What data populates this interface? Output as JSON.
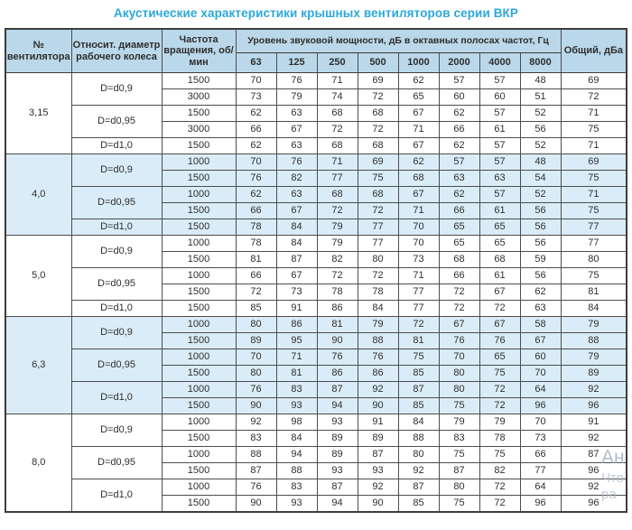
{
  "title": "Акустические характеристики крышных вентиляторов серии ВКР",
  "colors": {
    "accent": "#2AA8DC",
    "header_bg": "#BAD8EA",
    "stripe_bg": "#DAECF7",
    "border": "#3C3C3C",
    "text": "#2E2E2E",
    "watermark": "#A9BCCB"
  },
  "watermark": {
    "lines": [
      "Ан",
      "Что",
      "ра"
    ]
  },
  "table": {
    "headers": {
      "fan": "№ вентилятора",
      "diameter": "Относит. диаметр рабочего колеса",
      "rpm": "Частота вращения, об/мин",
      "spl": "Уровень звуковой мощности, дБ в октавных полосах частот, Гц",
      "total": "Общий, дБа"
    },
    "freq_labels": [
      "63",
      "125",
      "250",
      "500",
      "1000",
      "2000",
      "4000",
      "8000"
    ],
    "sections": [
      {
        "fan": "3,15",
        "striped": false,
        "groups": [
          {
            "diameter": "D=d0,9",
            "rows": [
              {
                "rpm": "1500",
                "values": [
                  70,
                  76,
                  71,
                  69,
                  62,
                  57,
                  57,
                  48
                ],
                "total": 69
              },
              {
                "rpm": "3000",
                "values": [
                  73,
                  79,
                  74,
                  72,
                  65,
                  60,
                  60,
                  51
                ],
                "total": 72
              }
            ]
          },
          {
            "diameter": "D=d0,95",
            "rows": [
              {
                "rpm": "1500",
                "values": [
                  62,
                  63,
                  68,
                  68,
                  67,
                  62,
                  57,
                  52
                ],
                "total": 71
              },
              {
                "rpm": "3000",
                "values": [
                  66,
                  67,
                  72,
                  72,
                  71,
                  66,
                  61,
                  56
                ],
                "total": 75
              }
            ]
          },
          {
            "diameter": "D=d1,0",
            "rows": [
              {
                "rpm": "1500",
                "values": [
                  62,
                  63,
                  68,
                  68,
                  67,
                  62,
                  57,
                  52
                ],
                "total": 71
              }
            ]
          }
        ]
      },
      {
        "fan": "4,0",
        "striped": true,
        "groups": [
          {
            "diameter": "D=d0,9",
            "rows": [
              {
                "rpm": "1000",
                "values": [
                  70,
                  76,
                  71,
                  69,
                  62,
                  57,
                  57,
                  48
                ],
                "total": 69
              },
              {
                "rpm": "1500",
                "values": [
                  76,
                  82,
                  77,
                  75,
                  68,
                  63,
                  63,
                  54
                ],
                "total": 75
              }
            ]
          },
          {
            "diameter": "D=d0,95",
            "rows": [
              {
                "rpm": "1000",
                "values": [
                  62,
                  63,
                  68,
                  68,
                  67,
                  62,
                  57,
                  52
                ],
                "total": 71
              },
              {
                "rpm": "1500",
                "values": [
                  66,
                  67,
                  72,
                  72,
                  71,
                  66,
                  61,
                  56
                ],
                "total": 75
              }
            ]
          },
          {
            "diameter": "D=d1,0",
            "rows": [
              {
                "rpm": "1500",
                "values": [
                  78,
                  84,
                  79,
                  77,
                  70,
                  65,
                  65,
                  56
                ],
                "total": 77
              }
            ]
          }
        ]
      },
      {
        "fan": "5,0",
        "striped": false,
        "groups": [
          {
            "diameter": "D=d0,9",
            "rows": [
              {
                "rpm": "1000",
                "values": [
                  78,
                  84,
                  79,
                  77,
                  70,
                  65,
                  65,
                  56
                ],
                "total": 77
              },
              {
                "rpm": "1500",
                "values": [
                  81,
                  87,
                  82,
                  80,
                  73,
                  68,
                  68,
                  59
                ],
                "total": 80
              }
            ]
          },
          {
            "diameter": "D=d0,95",
            "rows": [
              {
                "rpm": "1000",
                "values": [
                  66,
                  67,
                  72,
                  72,
                  71,
                  66,
                  61,
                  56
                ],
                "total": 75
              },
              {
                "rpm": "1500",
                "values": [
                  72,
                  73,
                  78,
                  78,
                  77,
                  72,
                  67,
                  62
                ],
                "total": 81
              }
            ]
          },
          {
            "diameter": "D=d1,0",
            "rows": [
              {
                "rpm": "1500",
                "values": [
                  85,
                  91,
                  86,
                  84,
                  77,
                  72,
                  72,
                  63
                ],
                "total": 84
              }
            ]
          }
        ]
      },
      {
        "fan": "6,3",
        "striped": true,
        "groups": [
          {
            "diameter": "D=d0,9",
            "rows": [
              {
                "rpm": "1000",
                "values": [
                  80,
                  86,
                  81,
                  79,
                  72,
                  67,
                  67,
                  58
                ],
                "total": 79
              },
              {
                "rpm": "1500",
                "values": [
                  89,
                  95,
                  90,
                  88,
                  81,
                  76,
                  76,
                  67
                ],
                "total": 88
              }
            ]
          },
          {
            "diameter": "D=d0,95",
            "rows": [
              {
                "rpm": "1000",
                "values": [
                  70,
                  71,
                  76,
                  76,
                  75,
                  70,
                  65,
                  60
                ],
                "total": 79
              },
              {
                "rpm": "1500",
                "values": [
                  80,
                  81,
                  86,
                  86,
                  85,
                  80,
                  75,
                  70
                ],
                "total": 89
              }
            ]
          },
          {
            "diameter": "D=d1,0",
            "rows": [
              {
                "rpm": "1000",
                "values": [
                  76,
                  83,
                  87,
                  92,
                  87,
                  80,
                  72,
                  64
                ],
                "total": 92
              },
              {
                "rpm": "1500",
                "values": [
                  90,
                  93,
                  94,
                  90,
                  85,
                  75,
                  72,
                  96
                ],
                "total": 96
              }
            ]
          }
        ]
      },
      {
        "fan": "8,0",
        "striped": false,
        "groups": [
          {
            "diameter": "D=d0,9",
            "rows": [
              {
                "rpm": "1000",
                "values": [
                  92,
                  98,
                  93,
                  91,
                  84,
                  79,
                  79,
                  70
                ],
                "total": 91
              },
              {
                "rpm": "1500",
                "values": [
                  83,
                  84,
                  89,
                  89,
                  88,
                  83,
                  78,
                  73
                ],
                "total": 92
              }
            ]
          },
          {
            "diameter": "D=d0,95",
            "rows": [
              {
                "rpm": "1000",
                "values": [
                  88,
                  94,
                  89,
                  87,
                  80,
                  75,
                  75,
                  66
                ],
                "total": 87
              },
              {
                "rpm": "1500",
                "values": [
                  87,
                  88,
                  93,
                  93,
                  92,
                  87,
                  82,
                  77
                ],
                "total": 96
              }
            ]
          },
          {
            "diameter": "D=d1,0",
            "rows": [
              {
                "rpm": "1000",
                "values": [
                  76,
                  83,
                  87,
                  92,
                  87,
                  80,
                  72,
                  64
                ],
                "total": 92
              },
              {
                "rpm": "1500",
                "values": [
                  90,
                  93,
                  94,
                  90,
                  85,
                  75,
                  72,
                  96
                ],
                "total": 96
              }
            ]
          }
        ]
      }
    ]
  }
}
